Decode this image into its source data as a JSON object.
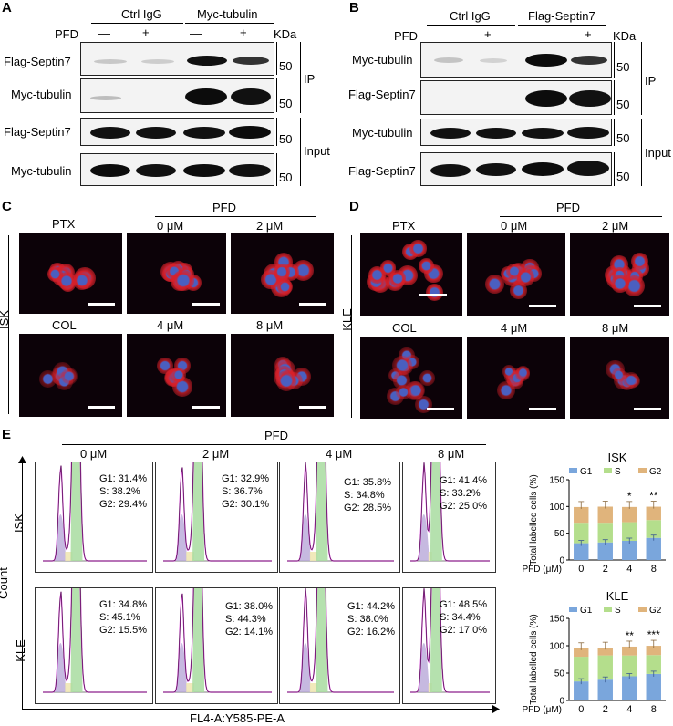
{
  "panels": {
    "A": "A",
    "B": "B",
    "C": "C",
    "D": "D",
    "E": "E"
  },
  "panelA": {
    "ctrl": "Ctrl IgG",
    "myc": "Myc-tubulin",
    "pfd": "PFD",
    "minus": "—",
    "plus": "+",
    "kda": "KDa",
    "rows": [
      "Flag-Septin7",
      "Myc-tubulin",
      "Flag-Septin7",
      "Myc-tubulin"
    ],
    "mw": "50",
    "ip": "IP",
    "input": "Input"
  },
  "panelB": {
    "ctrl": "Ctrl IgG",
    "flag": "Flag-Septin7",
    "pfd": "PFD",
    "minus": "—",
    "plus": "+",
    "kda": "KDa",
    "rows": [
      "Myc-tubulin",
      "Flag-Septin7",
      "Myc-tubulin",
      "Flag-Septin7"
    ],
    "mw": "50",
    "ip": "IP",
    "input": "Input"
  },
  "panelC": {
    "pfd": "PFD",
    "ptx": "PTX",
    "col": "COL",
    "d0": "0 μM",
    "d2": "2 μM",
    "d4": "4 μM",
    "d8": "8 μM",
    "line": "ISK"
  },
  "panelD": {
    "pfd": "PFD",
    "ptx": "PTX",
    "col": "COL",
    "d0": "0 μM",
    "d2": "2 μM",
    "d4": "4 μM",
    "d8": "8 μM",
    "line": "KLE"
  },
  "panelE": {
    "pfd": "PFD",
    "doses": [
      "0 μM",
      "2 μM",
      "4 μM",
      "8 μM"
    ],
    "isk": "ISK",
    "kle": "KLE",
    "count": "Count",
    "xlabel": "FL4-A:Y585-PE-A",
    "isk_stats": [
      {
        "g1": "G1: 31.4%",
        "s": "S: 38.2%",
        "g2": "G2: 29.4%"
      },
      {
        "g1": "G1: 32.9%",
        "s": "S: 36.7%",
        "g2": "G2: 30.1%"
      },
      {
        "g1": "G1: 35.8%",
        "s": "S: 34.8%",
        "g2": "G2: 28.5%"
      },
      {
        "g1": "G1: 41.4%",
        "s": "S: 33.2%",
        "g2": "G2: 25.0%"
      }
    ],
    "kle_stats": [
      {
        "g1": "G1: 34.8%",
        "s": "S: 45.1%",
        "g2": "G2: 15.5%"
      },
      {
        "g1": "G1: 38.0%",
        "s": "S: 44.3%",
        "g2": "G2: 14.1%"
      },
      {
        "g1": "G1: 44.2%",
        "s": "S: 38.0%",
        "g2": "G2: 16.2%"
      },
      {
        "g1": "G1: 48.5%",
        "s": "S: 34.4%",
        "g2": "G2: 17.0%"
      }
    ]
  },
  "colors": {
    "g1": "#7aa6dc",
    "s": "#b4de8c",
    "g2": "#e0b47c",
    "cell_red": "#d8202a",
    "nucleus": "#4a5fc0"
  },
  "chart_data": [
    {
      "type": "bar",
      "title": "ISK",
      "ylabel": "Total labelled cells (%)",
      "xlabel": "PFD (μM)",
      "categories": [
        "0",
        "2",
        "4",
        "8"
      ],
      "ylim": [
        0,
        150
      ],
      "yticks": [
        "0",
        "50",
        "100",
        "150"
      ],
      "legend": [
        "G1",
        "S",
        "G2"
      ],
      "series": [
        {
          "name": "G1",
          "values": [
            31.4,
            32.9,
            35.8,
            41.4
          ]
        },
        {
          "name": "S",
          "values": [
            38.2,
            36.7,
            34.8,
            33.2
          ]
        },
        {
          "name": "G2",
          "values": [
            29.4,
            30.1,
            28.5,
            25.0
          ]
        }
      ],
      "annotations": [
        "",
        "",
        "*",
        "**"
      ]
    },
    {
      "type": "bar",
      "title": "KLE",
      "ylabel": "Total labelled cells (%)",
      "xlabel": "PFD (μM)",
      "categories": [
        "0",
        "2",
        "4",
        "8"
      ],
      "ylim": [
        0,
        150
      ],
      "yticks": [
        "0",
        "50",
        "100",
        "150"
      ],
      "legend": [
        "G1",
        "S",
        "G2"
      ],
      "series": [
        {
          "name": "G1",
          "values": [
            34.8,
            38.0,
            44.2,
            48.5
          ]
        },
        {
          "name": "S",
          "values": [
            45.1,
            44.3,
            38.0,
            34.4
          ]
        },
        {
          "name": "G2",
          "values": [
            15.5,
            14.1,
            16.2,
            17.0
          ]
        }
      ],
      "annotations": [
        "",
        "",
        "**",
        "***"
      ]
    }
  ]
}
